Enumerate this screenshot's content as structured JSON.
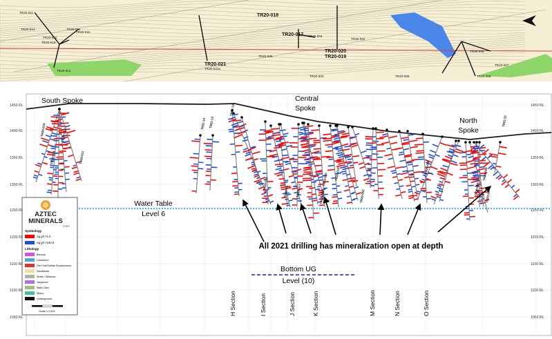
{
  "colors": {
    "ag_high": "#ff0000",
    "ag_low": "#1a4fd6",
    "map_bg": "#f6efd6",
    "green_band": "#8fd66a",
    "blue_river": "#4a86e8",
    "water_table": "#00a0e0",
    "bottom_ug": "#2020c0",
    "topo": "#222222"
  },
  "map": {
    "collar_labels": [
      {
        "id": "m1",
        "text": "TR20-011"
      },
      {
        "id": "m2",
        "text": "TR20-013"
      },
      {
        "id": "m3",
        "text": "TR20-014"
      },
      {
        "id": "m4",
        "text": "TR20-010"
      },
      {
        "id": "m5",
        "text": "TR20-016"
      },
      {
        "id": "m6",
        "text": "TR20-015"
      },
      {
        "id": "m7",
        "text": "TR20-012"
      },
      {
        "id": "m8",
        "text": "TR20-018"
      },
      {
        "id": "m9",
        "text": "TR20-017"
      },
      {
        "id": "m10",
        "text": "TR20-004"
      },
      {
        "id": "m11",
        "text": "TR20-002"
      },
      {
        "id": "m12",
        "text": "TR20-005"
      },
      {
        "id": "m13",
        "text": "TR20-020"
      },
      {
        "id": "m14",
        "text": "TR20-019"
      },
      {
        "id": "m15",
        "text": "TR20-021"
      },
      {
        "id": "m16",
        "text": "TR20-021a"
      },
      {
        "id": "m17",
        "text": "TR20-003"
      },
      {
        "id": "m18",
        "text": "TR20-008"
      },
      {
        "id": "m19",
        "text": "TR20-007"
      },
      {
        "id": "m20",
        "text": "TR20-006"
      },
      {
        "id": "m21",
        "text": "TR20-009"
      }
    ]
  },
  "section": {
    "rl_ticks": [
      "1450 RL",
      "1400 RL",
      "1350 RL",
      "1300 RL",
      "1250 RL",
      "1200 RL",
      "1150 RL",
      "1100 RL",
      "1050 RL"
    ],
    "spoke_labels": {
      "south": "South Spoke",
      "central_1": "Central",
      "central_2": "Spoke",
      "north_1": "North",
      "north_2": "Spoke"
    },
    "water_table_1": "Water Table",
    "water_table_2": "Level 6",
    "bottom_ug_1": "Bottom UG",
    "bottom_ug_2": "Level (10)",
    "headline": "All 2021 drilling has mineralization open at depth",
    "section_labels": [
      "H Section",
      "I Section",
      "J Section",
      "K Section",
      "M Section",
      "N Section",
      "O Section"
    ],
    "hole_labels": [
      {
        "id": "s1",
        "text": "TR20-016"
      },
      {
        "id": "s2",
        "text": "TR20-014"
      },
      {
        "id": "s3",
        "text": "TR20-013"
      },
      {
        "id": "s4",
        "text": "TR20-011"
      },
      {
        "id": "s5",
        "text": "TR21-12"
      },
      {
        "id": "s6",
        "text": "TR21-13"
      },
      {
        "id": "s7",
        "text": "TR21-14"
      },
      {
        "id": "s8",
        "text": "TR20-018"
      },
      {
        "id": "s9",
        "text": "TR21-15"
      },
      {
        "id": "s10",
        "text": "TR20-017"
      },
      {
        "id": "s11",
        "text": "TR20-003"
      },
      {
        "id": "s12",
        "text": "TR20-020"
      },
      {
        "id": "s13",
        "text": "TR20-019"
      },
      {
        "id": "s14",
        "text": "TR20-002"
      },
      {
        "id": "s15",
        "text": "TR20-006"
      },
      {
        "id": "s16",
        "text": "TR20-009"
      },
      {
        "id": "s17",
        "text": "TR20-008"
      },
      {
        "id": "s18",
        "text": "TR20-007"
      },
      {
        "id": "s19",
        "text": "TR21-21"
      }
    ]
  },
  "legend": {
    "logo_line1": "AZTEC",
    "logo_line2": "MINERALS",
    "logo_line3": "CORP.",
    "symbology_title": "Symbology",
    "sym_items": [
      "Ag g/t >1.0",
      "Ag g/t >100.0"
    ],
    "lithology_title": "Lithology",
    "lith_items": [
      {
        "label": "Breccia",
        "color": "#d94fd9"
      },
      {
        "label": "Limestone",
        "color": "#5aa0e0"
      },
      {
        "label": "Ore Pod/Sulfide Replacement",
        "color": "#e03030"
      },
      {
        "label": "Sandstone",
        "color": "#f0e0a0"
      },
      {
        "label": "Shale / Siltstone",
        "color": "#b0b0b0"
      },
      {
        "label": "Jasperoid",
        "color": "#b070e0"
      },
      {
        "label": "Mafic Dike",
        "color": "#a0c080"
      },
      {
        "label": "Skarn",
        "color": "#40c0a0"
      },
      {
        "label": "Underground",
        "color": "#111111"
      }
    ],
    "scale_label": "Scale 1:2,500"
  }
}
